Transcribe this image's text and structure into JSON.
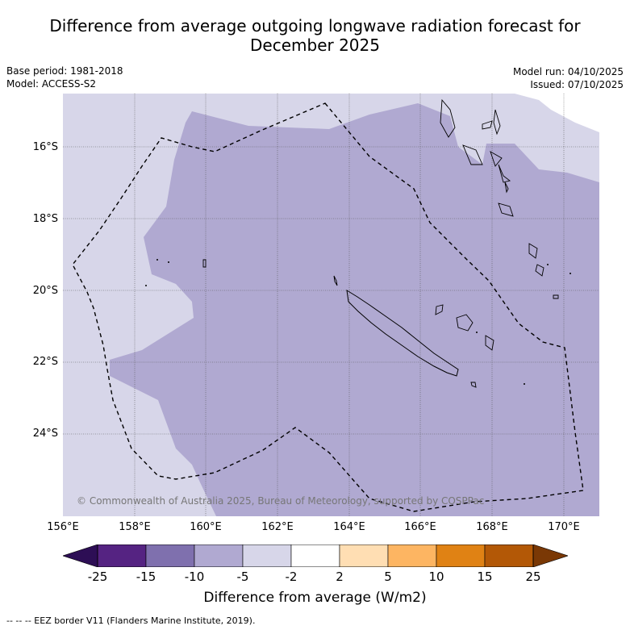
{
  "title_line1": "Difference from average outgoing longwave radiation forecast for",
  "title_line2": "December 2025",
  "base_period": "Base period: 1981-2018",
  "model": "Model: ACCESS-S2",
  "model_run": "Model run: 04/10/2025",
  "issued": "Issued: 07/10/2025",
  "lat_labels": [
    "16°S",
    "18°S",
    "20°S",
    "22°S",
    "24°S"
  ],
  "lon_labels": [
    "156°E",
    "158°E",
    "160°E",
    "162°E",
    "164°E",
    "166°E",
    "168°E",
    "170°E"
  ],
  "credit": "© Commonwealth of Australia 2025, Bureau of Meteorology, supported by COSPPac",
  "colorbar": {
    "ticks": [
      "-25",
      "-15",
      "-10",
      "-5",
      "-2",
      "2",
      "5",
      "10",
      "15",
      "25"
    ],
    "title": "Difference from average (W/m2)",
    "colors": [
      "#2d0e55",
      "#552382",
      "#7f70ae",
      "#b0a9d1",
      "#d7d6e9",
      "#ffffff",
      "#ffdeb3",
      "#fdb562",
      "#e08214",
      "#b35806",
      "#7a3805"
    ]
  },
  "legend": "--  --  -- EEZ border V11 (Flanders Marine Institute, 2019)."
}
